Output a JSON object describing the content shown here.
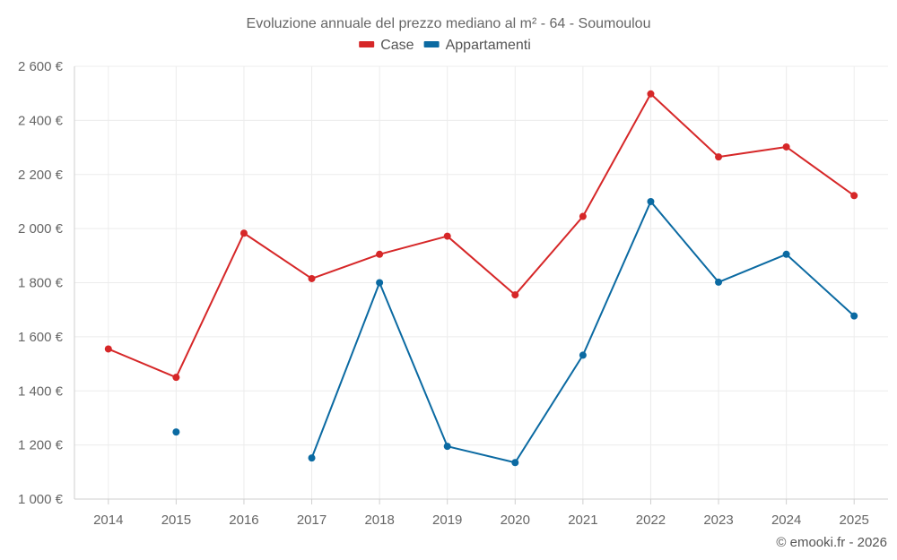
{
  "chart_data": {
    "type": "line",
    "title": "Evoluzione annuale del prezzo mediano al m² - 64 - Soumoulou",
    "categories": [
      "2014",
      "2015",
      "2016",
      "2017",
      "2018",
      "2019",
      "2020",
      "2021",
      "2022",
      "2023",
      "2024",
      "2025"
    ],
    "series": [
      {
        "name": "Case",
        "color": "#d62728",
        "values": [
          1555,
          1450,
          1983,
          1815,
          1905,
          1972,
          1755,
          2045,
          2498,
          2265,
          2302,
          2122
        ]
      },
      {
        "name": "Appartamenti",
        "color": "#0b6aa2",
        "values": [
          null,
          1248,
          null,
          1152,
          1800,
          1195,
          1135,
          1532,
          2100,
          1802,
          1905,
          1677
        ]
      }
    ],
    "ylim": [
      1000,
      2600
    ],
    "yticks": [
      1000,
      1200,
      1400,
      1600,
      1800,
      2000,
      2200,
      2400,
      2600
    ],
    "ytick_labels": [
      "1 000 €",
      "1 200 €",
      "1 400 €",
      "1 600 €",
      "1 800 €",
      "2 000 €",
      "2 200 €",
      "2 400 €",
      "2 600 €"
    ],
    "xlabel": "",
    "ylabel": "",
    "grid": true,
    "legend_position": "top-center"
  },
  "credit": "© emooki.fr - 2026"
}
